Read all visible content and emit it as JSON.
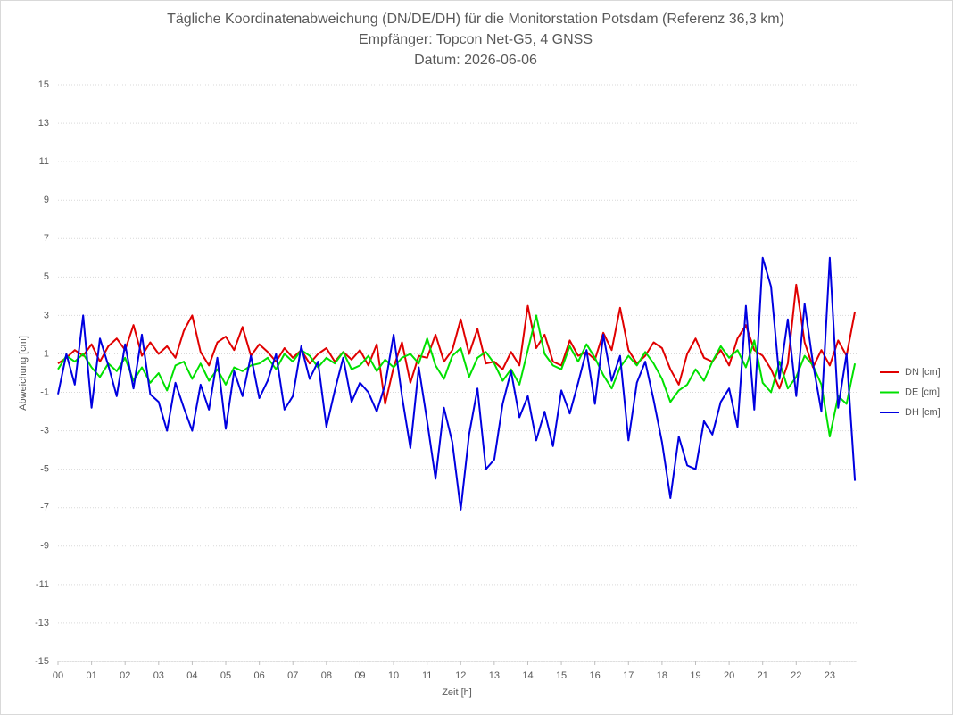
{
  "chart_data": {
    "type": "line",
    "title": [
      "Tägliche Koordinatenabweichung (DN/DE/DH) für die Monitorstation Potsdam (Referenz 36,3 km)",
      "Empfänger: Topcon Net-G5, 4 GNSS",
      "Datum: 2026-06-06"
    ],
    "xlabel": "Zeit [h]",
    "ylabel": "Abweichung [cm]",
    "x": [
      0,
      0.25,
      0.5,
      0.75,
      1,
      1.25,
      1.5,
      1.75,
      2,
      2.25,
      2.5,
      2.75,
      3,
      3.25,
      3.5,
      3.75,
      4,
      4.25,
      4.5,
      4.75,
      5,
      5.25,
      5.5,
      5.75,
      6,
      6.25,
      6.5,
      6.75,
      7,
      7.25,
      7.5,
      7.75,
      8,
      8.25,
      8.5,
      8.75,
      9,
      9.25,
      9.5,
      9.75,
      10,
      10.25,
      10.5,
      10.75,
      11,
      11.25,
      11.5,
      11.75,
      12,
      12.25,
      12.5,
      12.75,
      13,
      13.25,
      13.5,
      13.75,
      14,
      14.25,
      14.5,
      14.75,
      15,
      15.25,
      15.5,
      15.75,
      16,
      16.25,
      16.5,
      16.75,
      17,
      17.25,
      17.5,
      17.75,
      18,
      18.25,
      18.5,
      18.75,
      19,
      19.25,
      19.5,
      19.75,
      20,
      20.25,
      20.5,
      20.75,
      21,
      21.25,
      21.5,
      21.75,
      22,
      22.25,
      22.5,
      22.75,
      23,
      23.25,
      23.5,
      23.75
    ],
    "series": [
      {
        "name": "DN [cm]",
        "color": "#e00000",
        "values": [
          0.5,
          0.8,
          1.2,
          0.9,
          1.5,
          0.6,
          1.4,
          1.8,
          1.2,
          2.5,
          0.9,
          1.6,
          1.0,
          1.4,
          0.8,
          2.2,
          3.0,
          1.1,
          0.4,
          1.6,
          1.9,
          1.2,
          2.4,
          0.9,
          1.5,
          1.1,
          0.6,
          1.3,
          0.8,
          1.2,
          0.5,
          1.0,
          1.3,
          0.6,
          1.1,
          0.7,
          1.2,
          0.4,
          1.5,
          -1.6,
          0.3,
          1.6,
          -0.5,
          0.9,
          0.8,
          2.0,
          0.6,
          1.2,
          2.8,
          1.0,
          2.3,
          0.5,
          0.6,
          0.2,
          1.1,
          0.4,
          3.5,
          1.3,
          2.0,
          0.6,
          0.4,
          1.7,
          0.9,
          1.1,
          0.7,
          2.1,
          1.2,
          3.4,
          1.2,
          0.5,
          0.9,
          1.6,
          1.3,
          0.2,
          -0.6,
          1.0,
          1.8,
          0.8,
          0.6,
          1.2,
          0.4,
          1.8,
          2.5,
          1.2,
          0.9,
          0.2,
          -0.8,
          0.5,
          4.6,
          1.6,
          0.3,
          1.2,
          0.4,
          1.7,
          0.9,
          3.2
        ]
      },
      {
        "name": "DE [cm]",
        "color": "#00e000",
        "values": [
          0.2,
          0.9,
          0.6,
          1.0,
          0.3,
          -0.2,
          0.5,
          0.1,
          0.8,
          -0.4,
          0.3,
          -0.5,
          0.0,
          -0.9,
          0.4,
          0.6,
          -0.3,
          0.5,
          -0.4,
          0.2,
          -0.6,
          0.3,
          0.1,
          0.4,
          0.5,
          0.8,
          0.2,
          1.0,
          0.6,
          1.2,
          0.9,
          0.3,
          0.8,
          0.5,
          1.1,
          0.2,
          0.4,
          0.9,
          0.1,
          0.7,
          0.3,
          0.8,
          1.0,
          0.5,
          1.8,
          0.4,
          -0.3,
          0.9,
          1.3,
          -0.2,
          0.8,
          1.1,
          0.5,
          -0.4,
          0.2,
          -0.6,
          1.2,
          3.0,
          1.0,
          0.4,
          0.2,
          1.4,
          0.6,
          1.5,
          0.8,
          -0.1,
          -0.8,
          0.3,
          0.9,
          0.4,
          1.1,
          0.5,
          -0.3,
          -1.5,
          -0.9,
          -0.6,
          0.2,
          -0.4,
          0.6,
          1.4,
          0.8,
          1.2,
          0.3,
          1.7,
          -0.5,
          -1.0,
          0.6,
          -0.8,
          -0.2,
          0.9,
          0.4,
          -0.6,
          -3.3,
          -1.2,
          -1.6,
          0.5
        ]
      },
      {
        "name": "DH [cm]",
        "color": "#0000e0",
        "values": [
          -1.1,
          1.0,
          -0.6,
          3.0,
          -1.8,
          1.8,
          0.4,
          -1.2,
          1.5,
          -0.8,
          2.0,
          -1.1,
          -1.5,
          -3.0,
          -0.5,
          -1.8,
          -3.0,
          -0.6,
          -1.9,
          0.8,
          -2.9,
          0.1,
          -1.2,
          0.9,
          -1.3,
          -0.4,
          1.0,
          -1.9,
          -1.2,
          1.4,
          -0.3,
          0.6,
          -2.8,
          -0.9,
          0.8,
          -1.5,
          -0.5,
          -1.0,
          -2.0,
          -0.6,
          2.0,
          -1.2,
          -3.9,
          0.3,
          -2.5,
          -5.5,
          -1.8,
          -3.6,
          -7.1,
          -3.2,
          -0.8,
          -5.0,
          -4.5,
          -1.6,
          0.1,
          -2.3,
          -1.2,
          -3.5,
          -2.0,
          -3.8,
          -0.9,
          -2.1,
          -0.5,
          1.2,
          -1.6,
          2.0,
          -0.4,
          0.9,
          -3.5,
          -0.5,
          0.6,
          -1.4,
          -3.6,
          -6.5,
          -3.3,
          -4.8,
          -5.0,
          -2.5,
          -3.2,
          -1.5,
          -0.8,
          -2.8,
          3.5,
          -1.9,
          6.0,
          4.5,
          -0.3,
          2.8,
          -1.2,
          3.6,
          0.5,
          -2.0,
          6.0,
          -1.8,
          1.0,
          -5.6
        ]
      }
    ],
    "xlim": [
      0,
      23.8
    ],
    "xticks": [
      {
        "value": 0,
        "label": "00"
      },
      {
        "value": 1,
        "label": "01"
      },
      {
        "value": 2,
        "label": "02"
      },
      {
        "value": 3,
        "label": "03"
      },
      {
        "value": 4,
        "label": "04"
      },
      {
        "value": 5,
        "label": "05"
      },
      {
        "value": 6,
        "label": "06"
      },
      {
        "value": 7,
        "label": "07"
      },
      {
        "value": 8,
        "label": "08"
      },
      {
        "value": 9,
        "label": "09"
      },
      10,
      11,
      12,
      13,
      14,
      15,
      16,
      17,
      18,
      19,
      20,
      21,
      22,
      23
    ],
    "ylim": [
      -15,
      15
    ],
    "yticks": [
      -15,
      -13,
      -11,
      -9,
      -7,
      -5,
      -3,
      -1,
      1,
      3,
      5,
      7,
      9,
      11,
      13,
      15
    ],
    "grid": true,
    "legend": "right"
  }
}
